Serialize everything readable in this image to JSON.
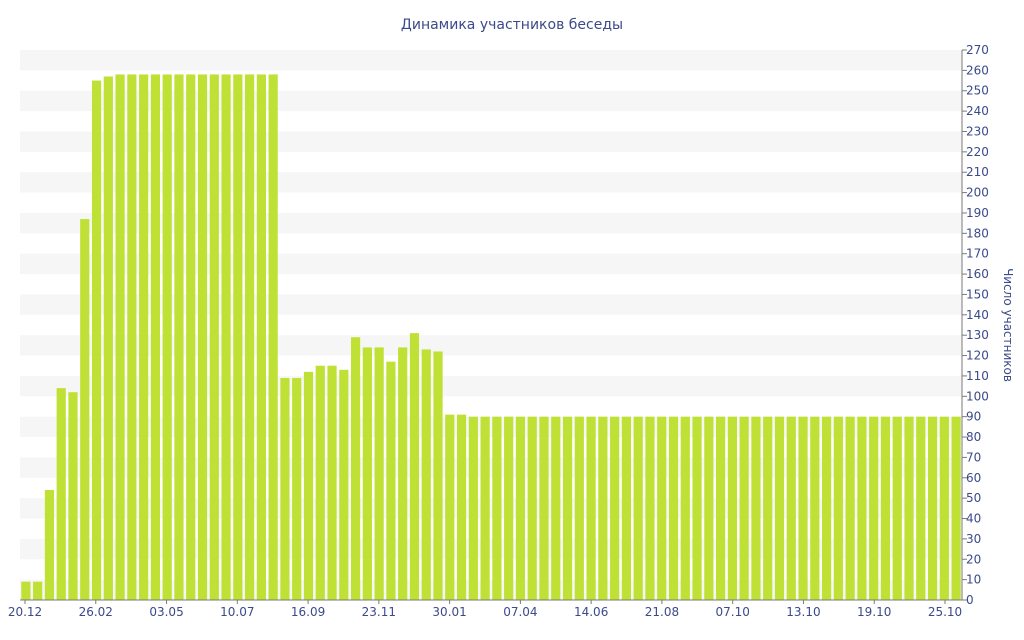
{
  "chart_data": {
    "type": "bar",
    "title": "Динамика участников беседы",
    "ylabel": "Число участников",
    "ylim": [
      0,
      270
    ],
    "yticks": [
      0,
      10,
      20,
      30,
      40,
      50,
      60,
      70,
      80,
      90,
      100,
      110,
      120,
      130,
      140,
      150,
      160,
      170,
      180,
      190,
      200,
      210,
      220,
      230,
      240,
      250,
      260,
      270
    ],
    "xtick_labels": [
      "20.12",
      "26.02",
      "03.05",
      "10.07",
      "16.09",
      "23.11",
      "30.01",
      "07.04",
      "14.06",
      "21.08",
      "07.10",
      "13.10",
      "19.10",
      "25.10"
    ],
    "grid": "alternating horizontal bands",
    "values": [
      9,
      9,
      54,
      104,
      102,
      187,
      255,
      257,
      258,
      258,
      258,
      258,
      258,
      258,
      258,
      258,
      258,
      258,
      258,
      258,
      258,
      258,
      109,
      109,
      112,
      115,
      115,
      113,
      129,
      124,
      124,
      117,
      124,
      131,
      123,
      122,
      91,
      91,
      90,
      90,
      90,
      90,
      90,
      90,
      90,
      90,
      90,
      90,
      90,
      90,
      90,
      90,
      90,
      90,
      90,
      90,
      90,
      90,
      90,
      90,
      90,
      90,
      90,
      90,
      90,
      90,
      90,
      90,
      90,
      90,
      90,
      90,
      90,
      90,
      90,
      90,
      90,
      90,
      90,
      90
    ],
    "bar_color": "#bfe034"
  }
}
